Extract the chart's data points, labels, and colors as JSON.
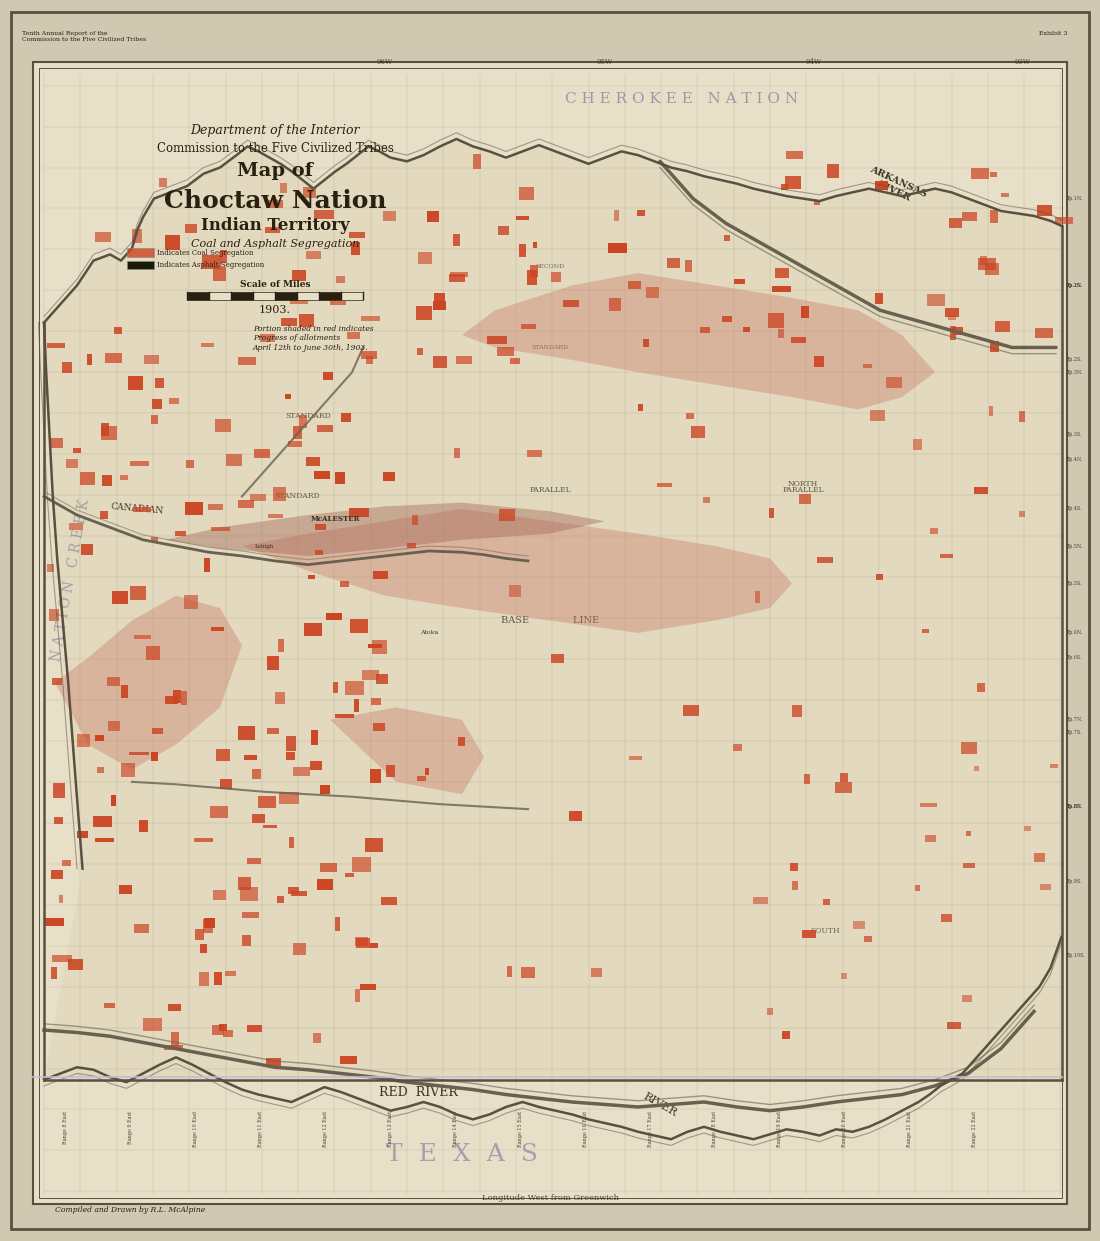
{
  "title_line1": "Department of the Interior",
  "title_line2": "Commission to the Five Civilized Tribes",
  "title_line3": "Map of",
  "title_line4": "Choctaw Nation",
  "title_line5": "Indian Territory",
  "subtitle": "Coal and Asphalt Segregation",
  "legend_line1": "Indicates Coal Segregation",
  "legend_line2": "Indicates Asphalt Segregation",
  "scale_label": "Scale of Miles",
  "year": "1903.",
  "note": "Portion shaded in red indicates\nProgress of allotments\nApril 12th to June 30th, 1903.",
  "credit": "Compiled and Drawn by R.L. McAlpine",
  "bottom_label": "Longitude West from Greenwich",
  "region_top": "C H E R O K E E   N A T I O N",
  "region_left_1": "C R E E K",
  "region_left_2": "N A T I O N",
  "region_bottom": "T  E  X  A  S",
  "top_annotation": "Tenth Annual Report of the\nCommission to the Five Civilized Tribes",
  "exhibit_label": "Exhibit 3",
  "bg_color": "#e8dfc8",
  "map_bg": "#e8dfc8",
  "border_color": "#5a5040",
  "text_color": "#2a2010",
  "grid_color": "#b0a080",
  "coal_color": "#cc4422",
  "asphalt_color": "#1a1a0a",
  "river_color": "#6a6050",
  "outer_bg": "#d0c8b0",
  "label_color": "#8888a0"
}
